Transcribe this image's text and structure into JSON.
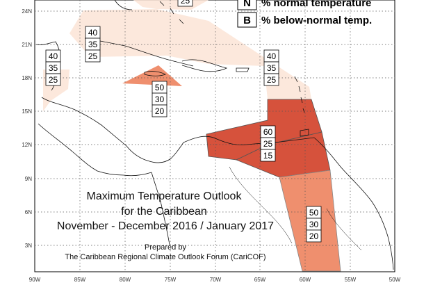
{
  "title": {
    "line1": "Maximum Temperature Outlook",
    "line2": "for the Caribbean",
    "line3": "November - December 2016 / January 2017"
  },
  "credits": {
    "line1": "Prepared by",
    "line2": "The Caribbean Regional Climate Outlook Forum (CariCOF)"
  },
  "legend": [
    {
      "key": "N",
      "text": "% normal temperature"
    },
    {
      "key": "B",
      "text": "% below-normal temp."
    }
  ],
  "axes": {
    "lon_labels": [
      "90W",
      "85W",
      "80W",
      "75W",
      "70W",
      "65W",
      "60W",
      "55W",
      "50W"
    ],
    "lat_labels": [
      "24N",
      "21N",
      "18N",
      "15N",
      "12N",
      "9N",
      "6N",
      "3N"
    ]
  },
  "zone_colors": {
    "light": "#fce4d6",
    "medium": "#ef8f6e",
    "strong": "#d6523c"
  },
  "probability_boxes": [
    {
      "region": "northern-caribbean",
      "above": "25",
      "normal": "",
      "below": ""
    },
    {
      "region": "bahamas-cuba",
      "above": "40",
      "normal": "35",
      "below": "25"
    },
    {
      "region": "belize-yucatan",
      "above": "40",
      "normal": "35",
      "below": "25"
    },
    {
      "region": "eastern-caribbean",
      "above": "40",
      "normal": "35",
      "below": "25"
    },
    {
      "region": "jamaica",
      "above": "50",
      "normal": "30",
      "below": "20"
    },
    {
      "region": "southern-caribbean",
      "above": "60",
      "normal": "25",
      "below": "15"
    },
    {
      "region": "guianas",
      "above": "50",
      "normal": "30",
      "below": "20"
    }
  ]
}
